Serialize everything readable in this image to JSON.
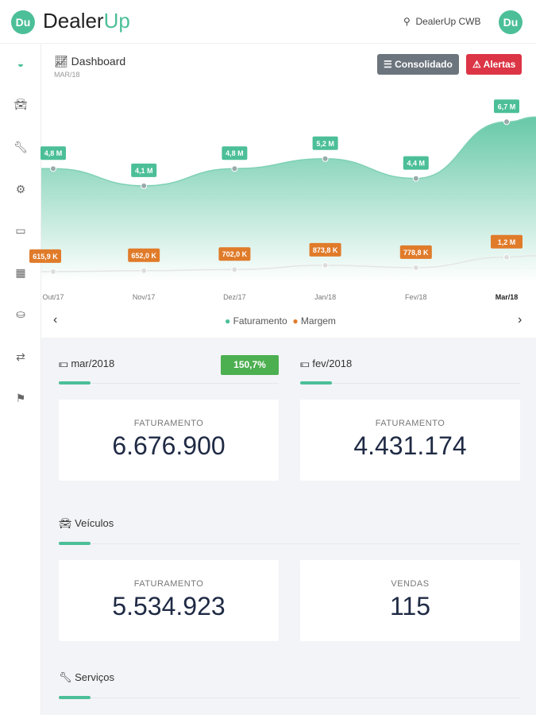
{
  "header": {
    "logo_badge": "Du",
    "logo_main": "Dealer",
    "logo_accent": "Up",
    "location": "DealerUp CWB",
    "avatar": "Du"
  },
  "sidebar": {
    "items": [
      "dashboard-icon",
      "car-icon",
      "wrench-icon",
      "cogs-icon",
      "inbox-icon",
      "basket-icon",
      "coins-icon",
      "exchange-icon",
      "flag-icon"
    ]
  },
  "dashboard": {
    "title": "Dashboard",
    "subtitle": "MAR/18",
    "consolidado": "Consolidado",
    "alertas": "Alertas"
  },
  "colors": {
    "accent": "#4cbf98",
    "orange": "#e07b2a",
    "gray_btn": "#6c757d",
    "red_btn": "#dc3545",
    "badge_green": "#4caf50"
  },
  "chart_data": {
    "type": "area",
    "categories": [
      "Out/17",
      "Nov/17",
      "Dez/17",
      "Jan/18",
      "Fev/18",
      "Mar/18"
    ],
    "series": [
      {
        "name": "Faturamento",
        "values": [
          4.8,
          4.1,
          4.8,
          5.2,
          4.4,
          6.7
        ],
        "labels": [
          "4,8 M",
          "4,1 M",
          "4,8 M",
          "5,2 M",
          "4,4 M",
          "6,7 M"
        ],
        "color": "#4cbf98"
      },
      {
        "name": "Margem",
        "values": [
          0.6159,
          0.652,
          0.702,
          0.8738,
          0.7788,
          1.2
        ],
        "labels": [
          "615,9 K",
          "652,0 K",
          "702,0 K",
          "873,8 K",
          "778,8 K",
          "1,2 M"
        ],
        "color": "#e07b2a"
      }
    ],
    "unit": "M",
    "prev": "‹",
    "next": "›"
  },
  "summary": {
    "current": {
      "period": "mar/2018",
      "badge": "150,7%",
      "label": "FATURAMENTO",
      "value": "6.676.900"
    },
    "previous": {
      "period": "fev/2018",
      "label": "FATURAMENTO",
      "value": "4.431.174"
    }
  },
  "veiculos": {
    "title": "Veículos",
    "cards": [
      {
        "label": "FATURAMENTO",
        "value": "5.534.923"
      },
      {
        "label": "VENDAS",
        "value": "115"
      }
    ]
  },
  "servicos": {
    "title": "Serviços"
  }
}
